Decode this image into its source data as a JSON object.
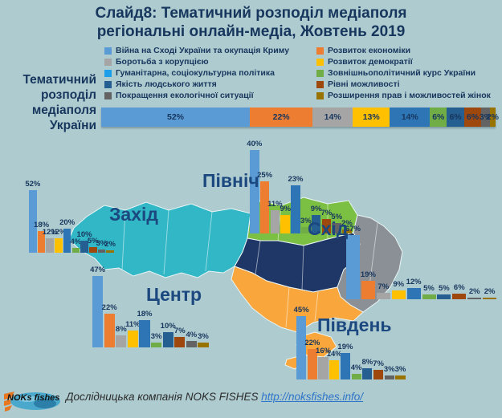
{
  "slide": {
    "title_line1": "Слайд8: Тематичний розподіл медіаполя",
    "title_line2": "регіональні онлайн-медіа, Жовтень 2019"
  },
  "overall_heading": {
    "lines": [
      "Тематичний",
      "розподіл",
      "медіаполя",
      "України"
    ]
  },
  "legend": {
    "items": [
      {
        "label": "Війна на Сході України та окупація Криму",
        "color": "#5B9BD5"
      },
      {
        "label": "Розвиток економіки",
        "color": "#ED7D31"
      },
      {
        "label": "Боротьба з корупцією",
        "color": "#A5A5A5"
      },
      {
        "label": "Розвиток демократії",
        "color": "#FFC000"
      },
      {
        "label": "Гуманітарна, соціокультурна політика",
        "color": "#1C9FE8"
      },
      {
        "label": "Зовнішньополітичний курс України",
        "color": "#70AD47"
      },
      {
        "label": "Якість людського життя",
        "color": "#255E91"
      },
      {
        "label": "Рівні можливості",
        "color": "#9E480E"
      },
      {
        "label": "Покращення екологічної ситуації",
        "color": "#636363"
      },
      {
        "label": "Розширення прав і можливостей жінок",
        "color": "#997300"
      }
    ]
  },
  "chart_data": {
    "type": "bar",
    "unit": "%",
    "categories": [
      "Війна на Сході України та окупація Криму",
      "Розвиток економіки",
      "Боротьба з корупцією",
      "Розвиток демократії",
      "Гуманітарна, соціокультурна політика",
      "Зовнішньополітичний курс України",
      "Якість людського життя",
      "Рівні можливості",
      "Покращення екологічної ситуації",
      "Розширення прав і можливостей жінок"
    ],
    "colors": [
      "#5B9BD5",
      "#ED7D31",
      "#A5A5A5",
      "#FFC000",
      "#2E75B6",
      "#70AD47",
      "#255E91",
      "#9E480E",
      "#636363",
      "#997300"
    ],
    "overall": {
      "label": "Тематичний розподіл медіаполя України",
      "subtype": "stacked-horizontal",
      "values": [
        52,
        22,
        14,
        13,
        14,
        6,
        6,
        6,
        3,
        2
      ]
    },
    "regions": [
      {
        "name": "Захід",
        "values": [
          52,
          18,
          12,
          12,
          20,
          4,
          10,
          5,
          3,
          2
        ]
      },
      {
        "name": "Північ",
        "values": [
          40,
          25,
          11,
          9,
          23,
          3,
          9,
          7,
          5,
          2
        ]
      },
      {
        "name": "Центр",
        "values": [
          47,
          22,
          8,
          11,
          18,
          3,
          10,
          7,
          4,
          3
        ]
      },
      {
        "name": "Схід",
        "values": [
          67,
          19,
          7,
          9,
          12,
          5,
          5,
          6,
          2,
          2
        ]
      },
      {
        "name": "Південь",
        "values": [
          45,
          22,
          16,
          14,
          19,
          4,
          8,
          7,
          3,
          3
        ]
      }
    ]
  },
  "map": {
    "region_colors": {
      "west": "#31B7C6",
      "north": "#7CC043",
      "center": "#1F3766",
      "east": "#8A9096",
      "south": "#F9A73D"
    }
  },
  "footer": {
    "logo_text": "NOKs fishes",
    "company_text": "Дослідницька компанія NOKS FISHES",
    "link_text": "http://noksfishes.info/",
    "link_href": "http://noksfishes.info/"
  }
}
